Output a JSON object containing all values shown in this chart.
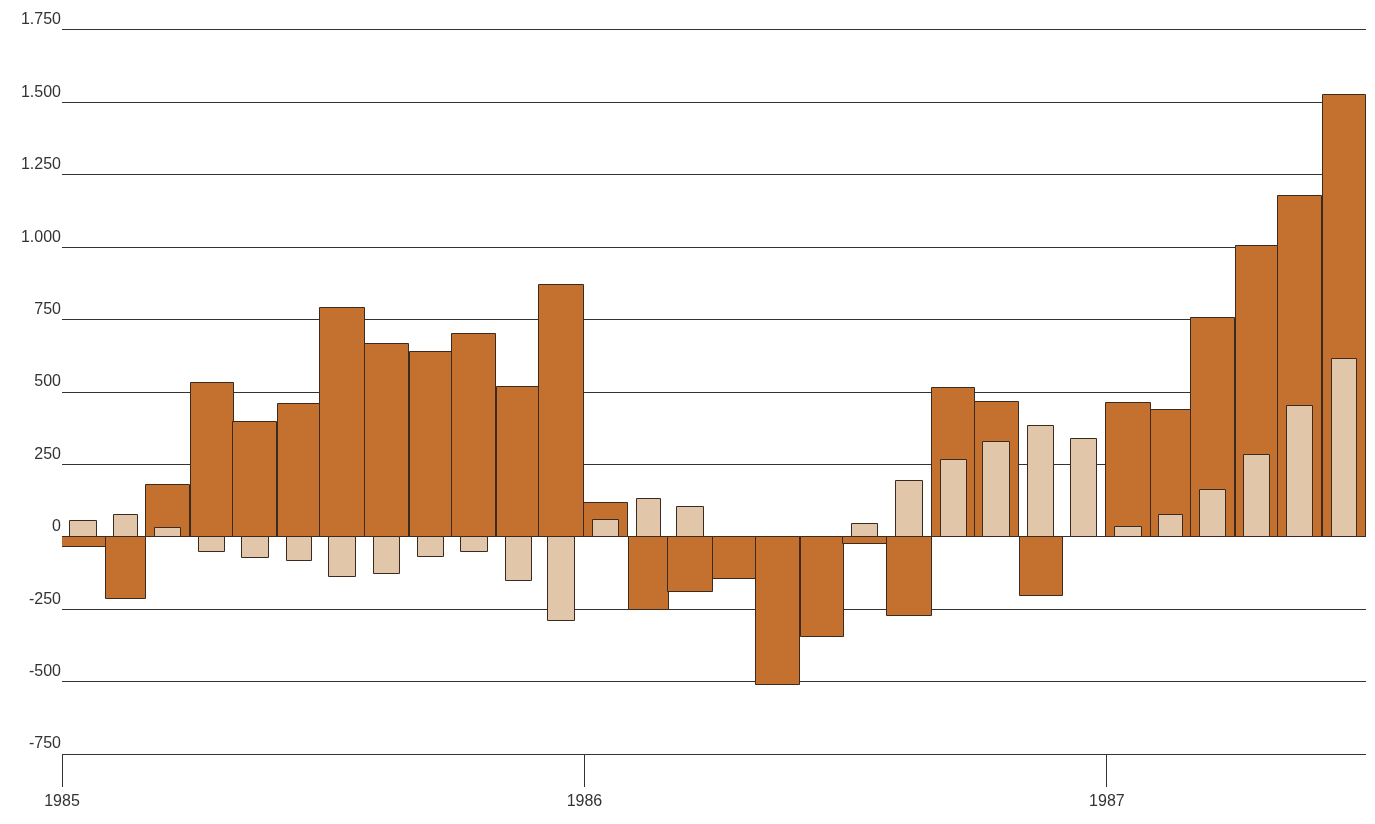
{
  "chart_data": {
    "type": "bar",
    "x": [
      "1985-01-16",
      "1985-02-15",
      "1985-03-16",
      "1985-04-16",
      "1985-05-16",
      "1985-06-16",
      "1985-07-16",
      "1985-08-16",
      "1985-09-16",
      "1985-10-16",
      "1985-11-16",
      "1985-12-16",
      "1986-01-16",
      "1986-02-15",
      "1986-03-16",
      "1986-04-16",
      "1986-05-16",
      "1986-06-16",
      "1986-07-16",
      "1986-08-16",
      "1986-09-16",
      "1986-10-16",
      "1986-11-16",
      "1986-12-16",
      "1987-01-16",
      "1987-02-15",
      "1987-03-16",
      "1987-04-16",
      "1987-05-16",
      "1987-06-16"
    ],
    "series": [
      {
        "color": "#c4702f",
        "values": [
          -36,
          -215,
          178,
          530,
          395,
          460,
          790,
          667,
          638,
          700,
          518,
          870,
          117,
          -253,
          -191,
          -144,
          -511,
          -345,
          -24,
          -274,
          515,
          464,
          -205,
          null,
          462,
          437,
          756,
          1005,
          1176,
          1527
        ]
      },
      {
        "color": "#e2c6aa",
        "values": [
          53,
          75,
          32,
          -52,
          -72,
          -83,
          -138,
          -129,
          -69,
          -52,
          -151,
          -290,
          58,
          130,
          102,
          null,
          null,
          null,
          44,
          192,
          265,
          329,
          384,
          336,
          34,
          77,
          160,
          283,
          453,
          615
        ]
      }
    ],
    "ylim": [
      -750,
      1750
    ],
    "yticks": [
      {
        "value": 1750,
        "label": "1.750"
      },
      {
        "value": 1500,
        "label": "1.500"
      },
      {
        "value": 1250,
        "label": "1.250"
      },
      {
        "value": 1000,
        "label": "1.000"
      },
      750,
      500,
      250,
      0,
      -250,
      -500,
      -750
    ],
    "xlim": [
      "1985",
      "1987-07"
    ],
    "xticks": [
      "1985",
      "1986",
      "1987"
    ],
    "grid": "y"
  }
}
